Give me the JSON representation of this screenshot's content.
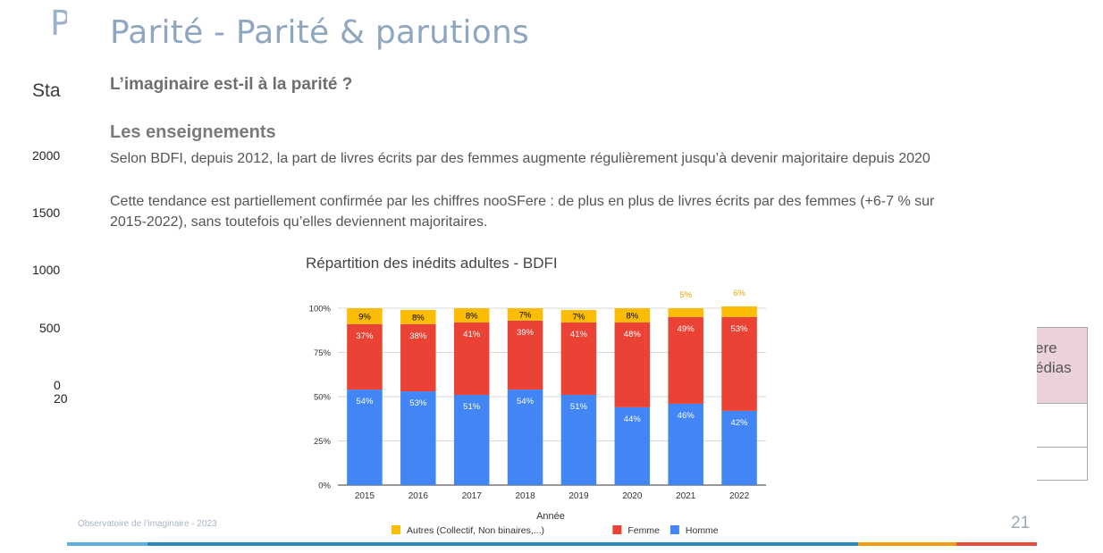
{
  "background_slide": {
    "title": "P",
    "subtitle": "Sta",
    "y_ticks": [
      "2000",
      "1500",
      "1000",
      "500",
      "0"
    ],
    "x_tick": "20",
    "table_header": [
      "ere",
      "édias"
    ]
  },
  "slide": {
    "title": "Parité - Parité & parutions",
    "question": "L’imaginaire est-il à la parité ?",
    "section_heading": "Les enseignements",
    "paragraph_1": "Selon BDFI, depuis 2012, la part de livres  écrits par des femmes augmente régulièrement jusqu’à devenir majoritaire depuis 2020",
    "paragraph_2_line_1": "Cette tendance est partiellement confirmée par les chiffres nooSFere : de plus en plus de livres écrits par des femmes (+6-7 % sur",
    "paragraph_2_line_2": "2015-2022), sans toutefois qu’elles deviennent majoritaires.",
    "footer": "Observatoire de l’imaginaire - 2023",
    "page_number": "21",
    "footer_rule_colors": [
      "#5dade2",
      "#2e86c1",
      "#f39c12",
      "#e74c3c"
    ]
  },
  "chart_data": {
    "type": "bar",
    "stacked": true,
    "title": "Répartition des inédits adultes - BDFI",
    "xlabel": "Année",
    "ylabel": "",
    "ylim": [
      0,
      100
    ],
    "y_ticks": [
      "0%",
      "25%",
      "50%",
      "75%",
      "100%"
    ],
    "categories": [
      "2015",
      "2016",
      "2017",
      "2018",
      "2019",
      "2020",
      "2021",
      "2022"
    ],
    "series": [
      {
        "name": "Homme",
        "color": "#4285f4",
        "values": [
          54,
          53,
          51,
          54,
          51,
          44,
          46,
          42
        ],
        "labels": [
          "54%",
          "53%",
          "51%",
          "54%",
          "51%",
          "44%",
          "46%",
          "42%"
        ]
      },
      {
        "name": "Femme",
        "color": "#ea4335",
        "values": [
          37,
          38,
          41,
          39,
          41,
          48,
          49,
          53
        ],
        "labels": [
          "37%",
          "38%",
          "41%",
          "39%",
          "41%",
          "48%",
          "49%",
          "53%"
        ]
      },
      {
        "name": "Autres (Collectif, Non binaires,...)",
        "color": "#fbbc04",
        "values": [
          9,
          8,
          8,
          7,
          7,
          8,
          5,
          6
        ],
        "labels": [
          "9%",
          "8%",
          "8%",
          "7%",
          "7%",
          "8%",
          "5%",
          "6%"
        ]
      }
    ],
    "legend_order": [
      "Autres (Collectif, Non binaires,...)",
      "Femme",
      "Homme"
    ],
    "legend_position": "bottom",
    "grid": true
  }
}
